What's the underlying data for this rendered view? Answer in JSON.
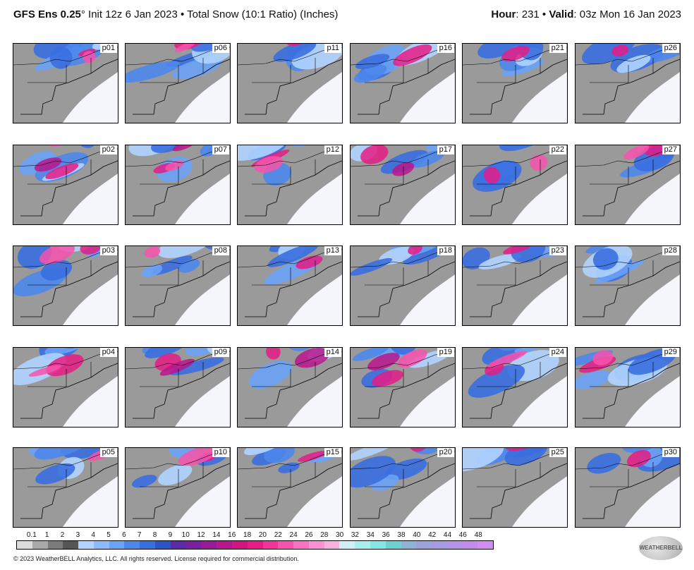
{
  "header": {
    "model": "GFS Ens 0.25",
    "degree": "°",
    "init": " Init 12z 6 Jan 2023",
    "bullet": " • ",
    "product": "Total Snow (10:1 Ratio) (Inches)",
    "hour_label": "Hour",
    "hour_value": ": 231",
    "valid_label": "Valid",
    "valid_value": ": 03z Mon 16 Jan 2023"
  },
  "panels": [
    [
      "p01",
      "p06",
      "p11",
      "p16",
      "p21",
      "p26"
    ],
    [
      "p02",
      "p07",
      "p12",
      "p17",
      "p22",
      "p27"
    ],
    [
      "p03",
      "p08",
      "p13",
      "p18",
      "p23",
      "p28"
    ],
    [
      "p04",
      "p09",
      "p14",
      "p19",
      "p24",
      "p29"
    ],
    [
      "p05",
      "p10",
      "p15",
      "p20",
      "p25",
      "p30"
    ]
  ],
  "colorbar": {
    "ticks": [
      "0.1",
      "1",
      "2",
      "3",
      "4",
      "5",
      "6",
      "7",
      "8",
      "9",
      "10",
      "12",
      "14",
      "16",
      "18",
      "20",
      "22",
      "24",
      "26",
      "28",
      "30",
      "32",
      "34",
      "36",
      "38",
      "40",
      "42",
      "44",
      "46",
      "48"
    ],
    "colors": [
      "#dcdcdc",
      "#a9a9a9",
      "#7b7b7b",
      "#565656",
      "#b0d4ff",
      "#8cbcff",
      "#6aa2f5",
      "#4d87ec",
      "#3a6fe0",
      "#2c56c8",
      "#5a2aa8",
      "#7a1fa0",
      "#991a96",
      "#b8168c",
      "#d11682",
      "#e51c86",
      "#f2349a",
      "#f752ad",
      "#fa72c0",
      "#fb91d2",
      "#f8b0df",
      "#cfeef6",
      "#a8f0f0",
      "#86e6e6",
      "#6ed0d0",
      "#8fb3d4",
      "#9aa3db",
      "#a69be0",
      "#b492e6",
      "#c48ae9",
      "#d08ef0"
    ]
  },
  "copyright": "© 2023 WeatherBELL Analytics, LLC. All rights reserved. License required for commercial distribution.",
  "logo_text": "WEATHERBELL"
}
